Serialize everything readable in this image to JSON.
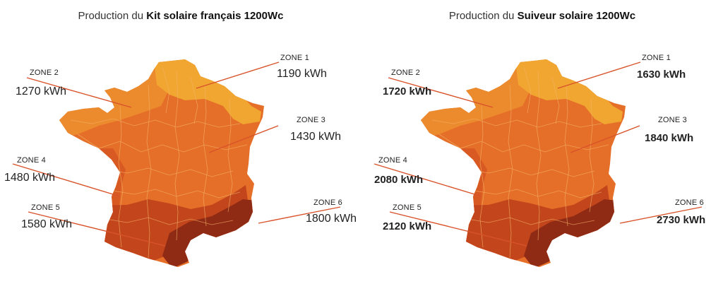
{
  "colors": {
    "zone1": "#f0a630",
    "zone2": "#ec8a2e",
    "zone3": "#e56f28",
    "zone4": "#d85a22",
    "zone5": "#c2451c",
    "zone6": "#8f2a14",
    "border": "#f4b36a",
    "leader": "#d9532a"
  },
  "left": {
    "title_prefix": "Production du ",
    "title_bold": "Kit solaire français 1200Wc",
    "zones": [
      {
        "name": "ZONE 1",
        "value": "1190 kWh"
      },
      {
        "name": "ZONE 2",
        "value": "1270 kWh"
      },
      {
        "name": "ZONE 3",
        "value": "1430 kWh"
      },
      {
        "name": "ZONE 4",
        "value": "1480 kWh"
      },
      {
        "name": "ZONE 5",
        "value": "1580 kWh"
      },
      {
        "name": "ZONE 6",
        "value": "1800 kWh"
      }
    ]
  },
  "right": {
    "title_prefix": "Production du ",
    "title_bold": "Suiveur solaire 1200Wc",
    "zones": [
      {
        "name": "ZONE 1",
        "value": "1630 kWh"
      },
      {
        "name": "ZONE 2",
        "value": "1720 kWh"
      },
      {
        "name": "ZONE 3",
        "value": "1840 kWh"
      },
      {
        "name": "ZONE 4",
        "value": "2080 kWh"
      },
      {
        "name": "ZONE 5",
        "value": "2120 kWh"
      },
      {
        "name": "ZONE 6",
        "value": "2730 kWh"
      }
    ]
  }
}
